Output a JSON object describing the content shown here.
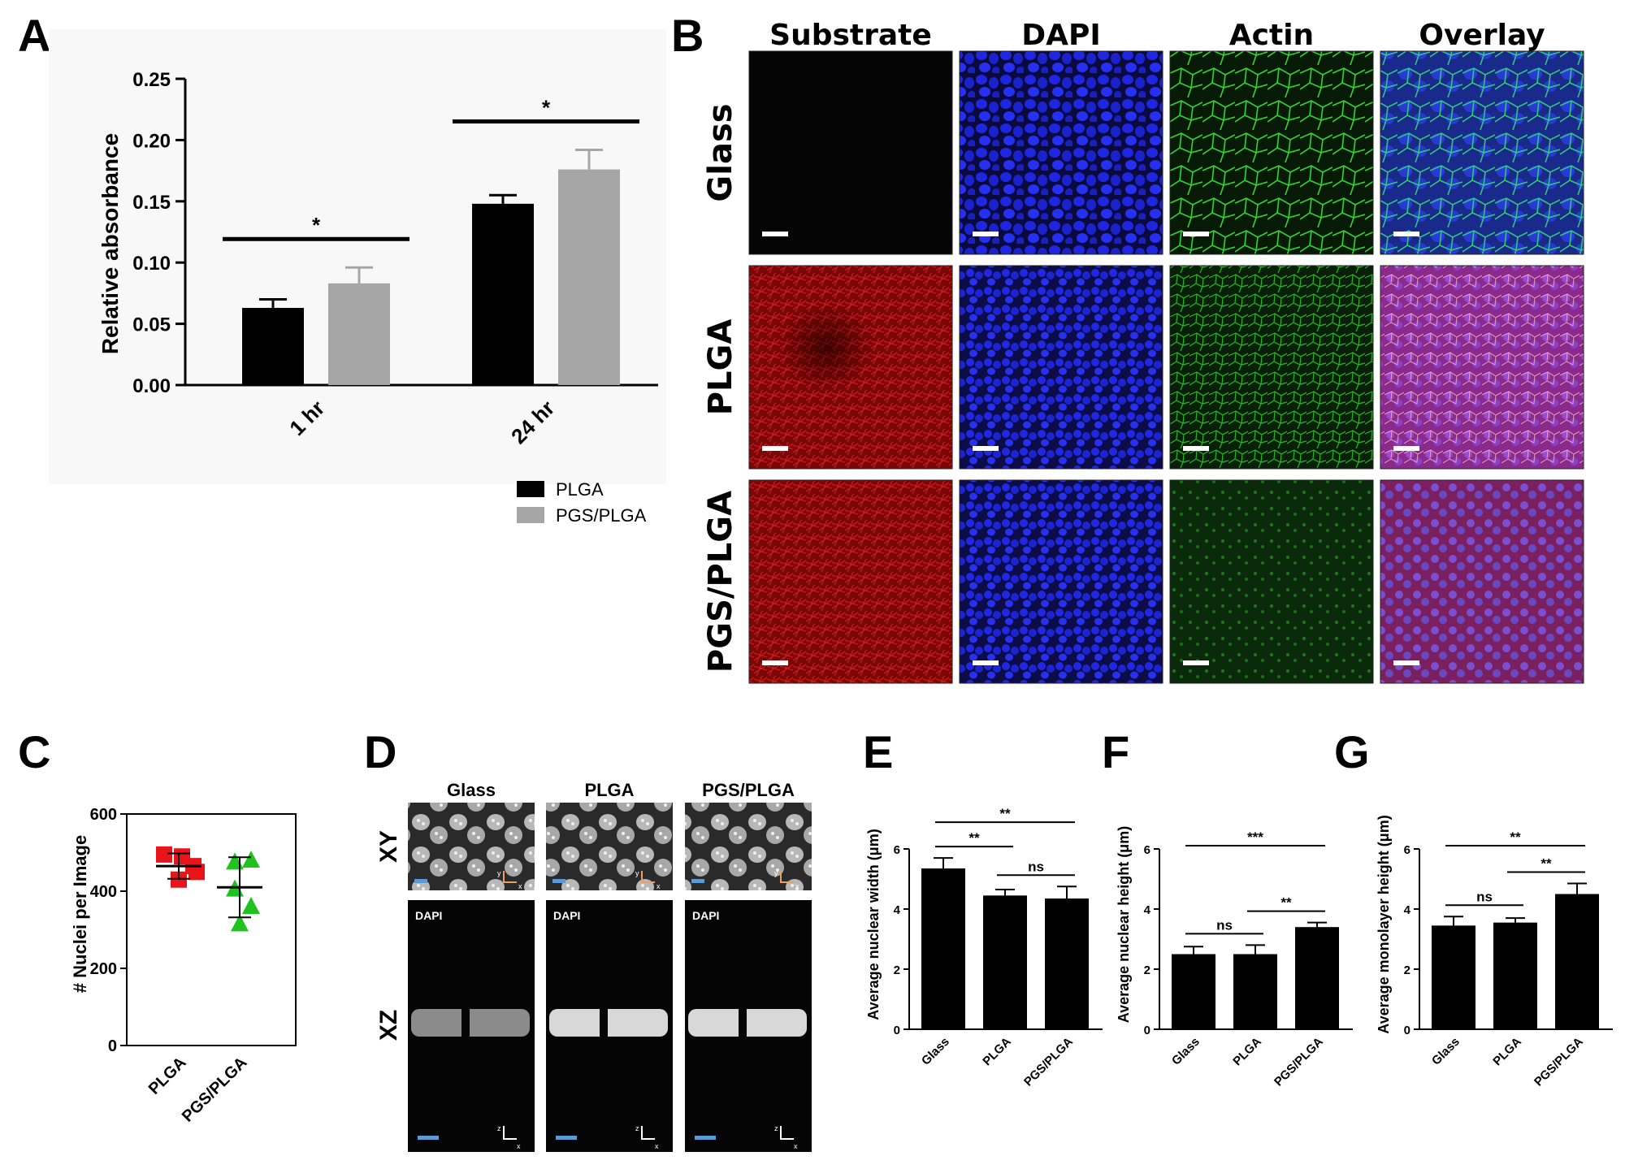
{
  "panel_letters": {
    "A": "A",
    "B": "B",
    "C": "C",
    "D": "D",
    "E": "E",
    "F": "F",
    "G": "G"
  },
  "colors": {
    "plga": "#000000",
    "pgs_plga": "#a6a6a6",
    "marker_plga": "#e8141a",
    "marker_pgs_plga": "#1ec31e",
    "scalebar": "#ffffff",
    "scalebar_d": "#5b9bd5"
  },
  "micrographs_B": {
    "columns": [
      "Substrate",
      "DAPI",
      "Actin",
      "Overlay"
    ],
    "rows": [
      "Glass",
      "PLGA",
      "PGS/PLGA"
    ],
    "tile_icons": [
      "fluorescence-black",
      "nuclei-blue",
      "actin-green",
      "overlay-blue-green",
      "substrate-red",
      "nuclei-blue",
      "actin-green",
      "overlay-magenta",
      "substrate-red",
      "nuclei-blue",
      "actin-green",
      "overlay-magenta"
    ]
  },
  "micrographs_D": {
    "columns": [
      "Glass",
      "PLGA",
      "PGS/PLGA"
    ],
    "row_labels": [
      "XY",
      "XZ"
    ],
    "channel_label": "DAPI",
    "axis_labels": {
      "xy_y": "y",
      "xy_x": "x",
      "xz_z": "z",
      "xz_x": "x"
    }
  },
  "chart_data": [
    {
      "id": "A",
      "type": "bar",
      "categories": [
        "1 hr",
        "24 hr"
      ],
      "series": [
        {
          "name": "PLGA",
          "values": [
            0.063,
            0.148
          ],
          "errors": [
            0.007,
            0.007
          ]
        },
        {
          "name": "PGS/PLGA",
          "values": [
            0.083,
            0.176
          ],
          "errors": [
            0.013,
            0.016
          ]
        }
      ],
      "xlabel": "",
      "ylabel": "Relative absorbance",
      "ylim": [
        0,
        0.25
      ],
      "yticks": [
        "0.00",
        "0.05",
        "0.10",
        "0.15",
        "0.20",
        "0.25"
      ],
      "yticks_values": [
        0,
        0.05,
        0.1,
        0.15,
        0.2,
        0.25
      ],
      "significance": [
        {
          "group": "1 hr",
          "label": "*"
        },
        {
          "group": "24 hr",
          "label": "*"
        }
      ],
      "legend": "bottom-right"
    },
    {
      "id": "C",
      "type": "scatter",
      "categories": [
        "PLGA",
        "PGS/PLGA"
      ],
      "points": [
        {
          "category": "PLGA",
          "values": [
            495,
            490,
            430,
            450,
            465
          ]
        },
        {
          "category": "PGS/PLGA",
          "values": [
            475,
            480,
            360,
            405,
            315
          ]
        }
      ],
      "mean": [
        465,
        410
      ],
      "sd": [
        33,
        78
      ],
      "ylabel": "# Nuclei per Image",
      "ylim": [
        0,
        600
      ],
      "yticks": [
        "0",
        "200",
        "400",
        "600"
      ],
      "yticks_values": [
        0,
        200,
        400,
        600
      ]
    },
    {
      "id": "E",
      "type": "bar",
      "categories": [
        "Glass",
        "PLGA",
        "PGS/PLGA"
      ],
      "values": [
        5.35,
        4.45,
        4.35
      ],
      "errors": [
        0.35,
        0.2,
        0.4
      ],
      "ylabel": "Average nuclear width (μm)",
      "ylim": [
        0,
        6
      ],
      "yticks": [
        "0",
        "2",
        "4",
        "6"
      ],
      "yticks_values": [
        0,
        2,
        4,
        6
      ],
      "significance": [
        {
          "from": 0,
          "to": 2,
          "label": "**"
        },
        {
          "from": 0,
          "to": 1,
          "label": "**"
        },
        {
          "from": 1,
          "to": 2,
          "label": "ns"
        }
      ]
    },
    {
      "id": "F",
      "type": "bar",
      "categories": [
        "Glass",
        "PLGA",
        "PGS/PLGA"
      ],
      "values": [
        2.5,
        2.5,
        3.4
      ],
      "errors": [
        0.25,
        0.3,
        0.15
      ],
      "ylabel": "Average nuclear height (μm)",
      "ylim": [
        0,
        6
      ],
      "yticks": [
        "0",
        "2",
        "4",
        "6"
      ],
      "yticks_values": [
        0,
        2,
        4,
        6
      ],
      "significance": [
        {
          "from": 0,
          "to": 2,
          "label": "***"
        },
        {
          "from": 1,
          "to": 2,
          "label": "**"
        },
        {
          "from": 0,
          "to": 1,
          "label": "ns"
        }
      ]
    },
    {
      "id": "G",
      "type": "bar",
      "categories": [
        "Glass",
        "PLGA",
        "PGS/PLGA"
      ],
      "values": [
        3.45,
        3.55,
        4.5
      ],
      "errors": [
        0.3,
        0.15,
        0.35
      ],
      "ylabel": "Average monolayer height (μm)",
      "ylim": [
        0,
        6
      ],
      "yticks": [
        "0",
        "2",
        "4",
        "6"
      ],
      "yticks_values": [
        0,
        2,
        4,
        6
      ],
      "significance": [
        {
          "from": 0,
          "to": 2,
          "label": "**"
        },
        {
          "from": 1,
          "to": 2,
          "label": "**"
        },
        {
          "from": 0,
          "to": 1,
          "label": "ns"
        }
      ]
    }
  ]
}
